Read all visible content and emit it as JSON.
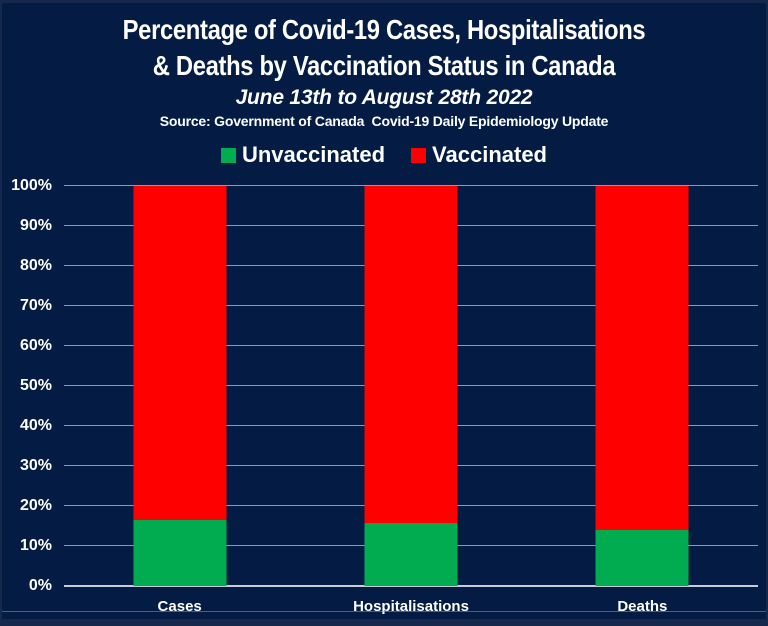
{
  "header": {
    "title_line1": "Percentage of Covid-19 Cases, Hospitalisations",
    "title_line2": "& Deaths by Vaccination Status in Canada",
    "subtitle": "June 13th to August 28th 2022",
    "source": "Source: Government of Canada  Covid-19 Daily Epidemiology Update"
  },
  "legend": {
    "items": [
      {
        "label": "Unvaccinated",
        "color": "#00ac4f"
      },
      {
        "label": "Vaccinated",
        "color": "#ff0000"
      }
    ]
  },
  "chart_data": {
    "type": "bar",
    "stacked": true,
    "percent_stacked": true,
    "title": "Percentage of Covid-19 Cases, Hospitalisations & Deaths by Vaccination Status in Canada",
    "subtitle": "June 13th to August 28th 2022",
    "source": "Source: Government of Canada  Covid-19 Daily Epidemiology Update",
    "categories": [
      "Cases",
      "Hospitalisations",
      "Deaths"
    ],
    "series": [
      {
        "name": "Unvaccinated",
        "color": "#00ac4f",
        "values": [
          16.5,
          15.8,
          14.1
        ]
      },
      {
        "name": "Vaccinated",
        "color": "#ff0000",
        "values": [
          83.5,
          84.2,
          85.9
        ]
      }
    ],
    "xlabel": "",
    "ylabel": "",
    "ylim": [
      0,
      100
    ],
    "y_ticks": [
      0,
      10,
      20,
      30,
      40,
      50,
      60,
      70,
      80,
      90,
      100
    ],
    "y_tick_suffix": "%",
    "grid": "horizontal",
    "legend_position": "top"
  },
  "colors": {
    "chart_background": "#041c44",
    "outer_frame": "#16294d",
    "gridline": "#8f99ad",
    "axis_line": "#c6cbd6",
    "text": "#ffffff",
    "unvaccinated_green": "#00ac4f",
    "vaccinated_red": "#ff0000"
  }
}
